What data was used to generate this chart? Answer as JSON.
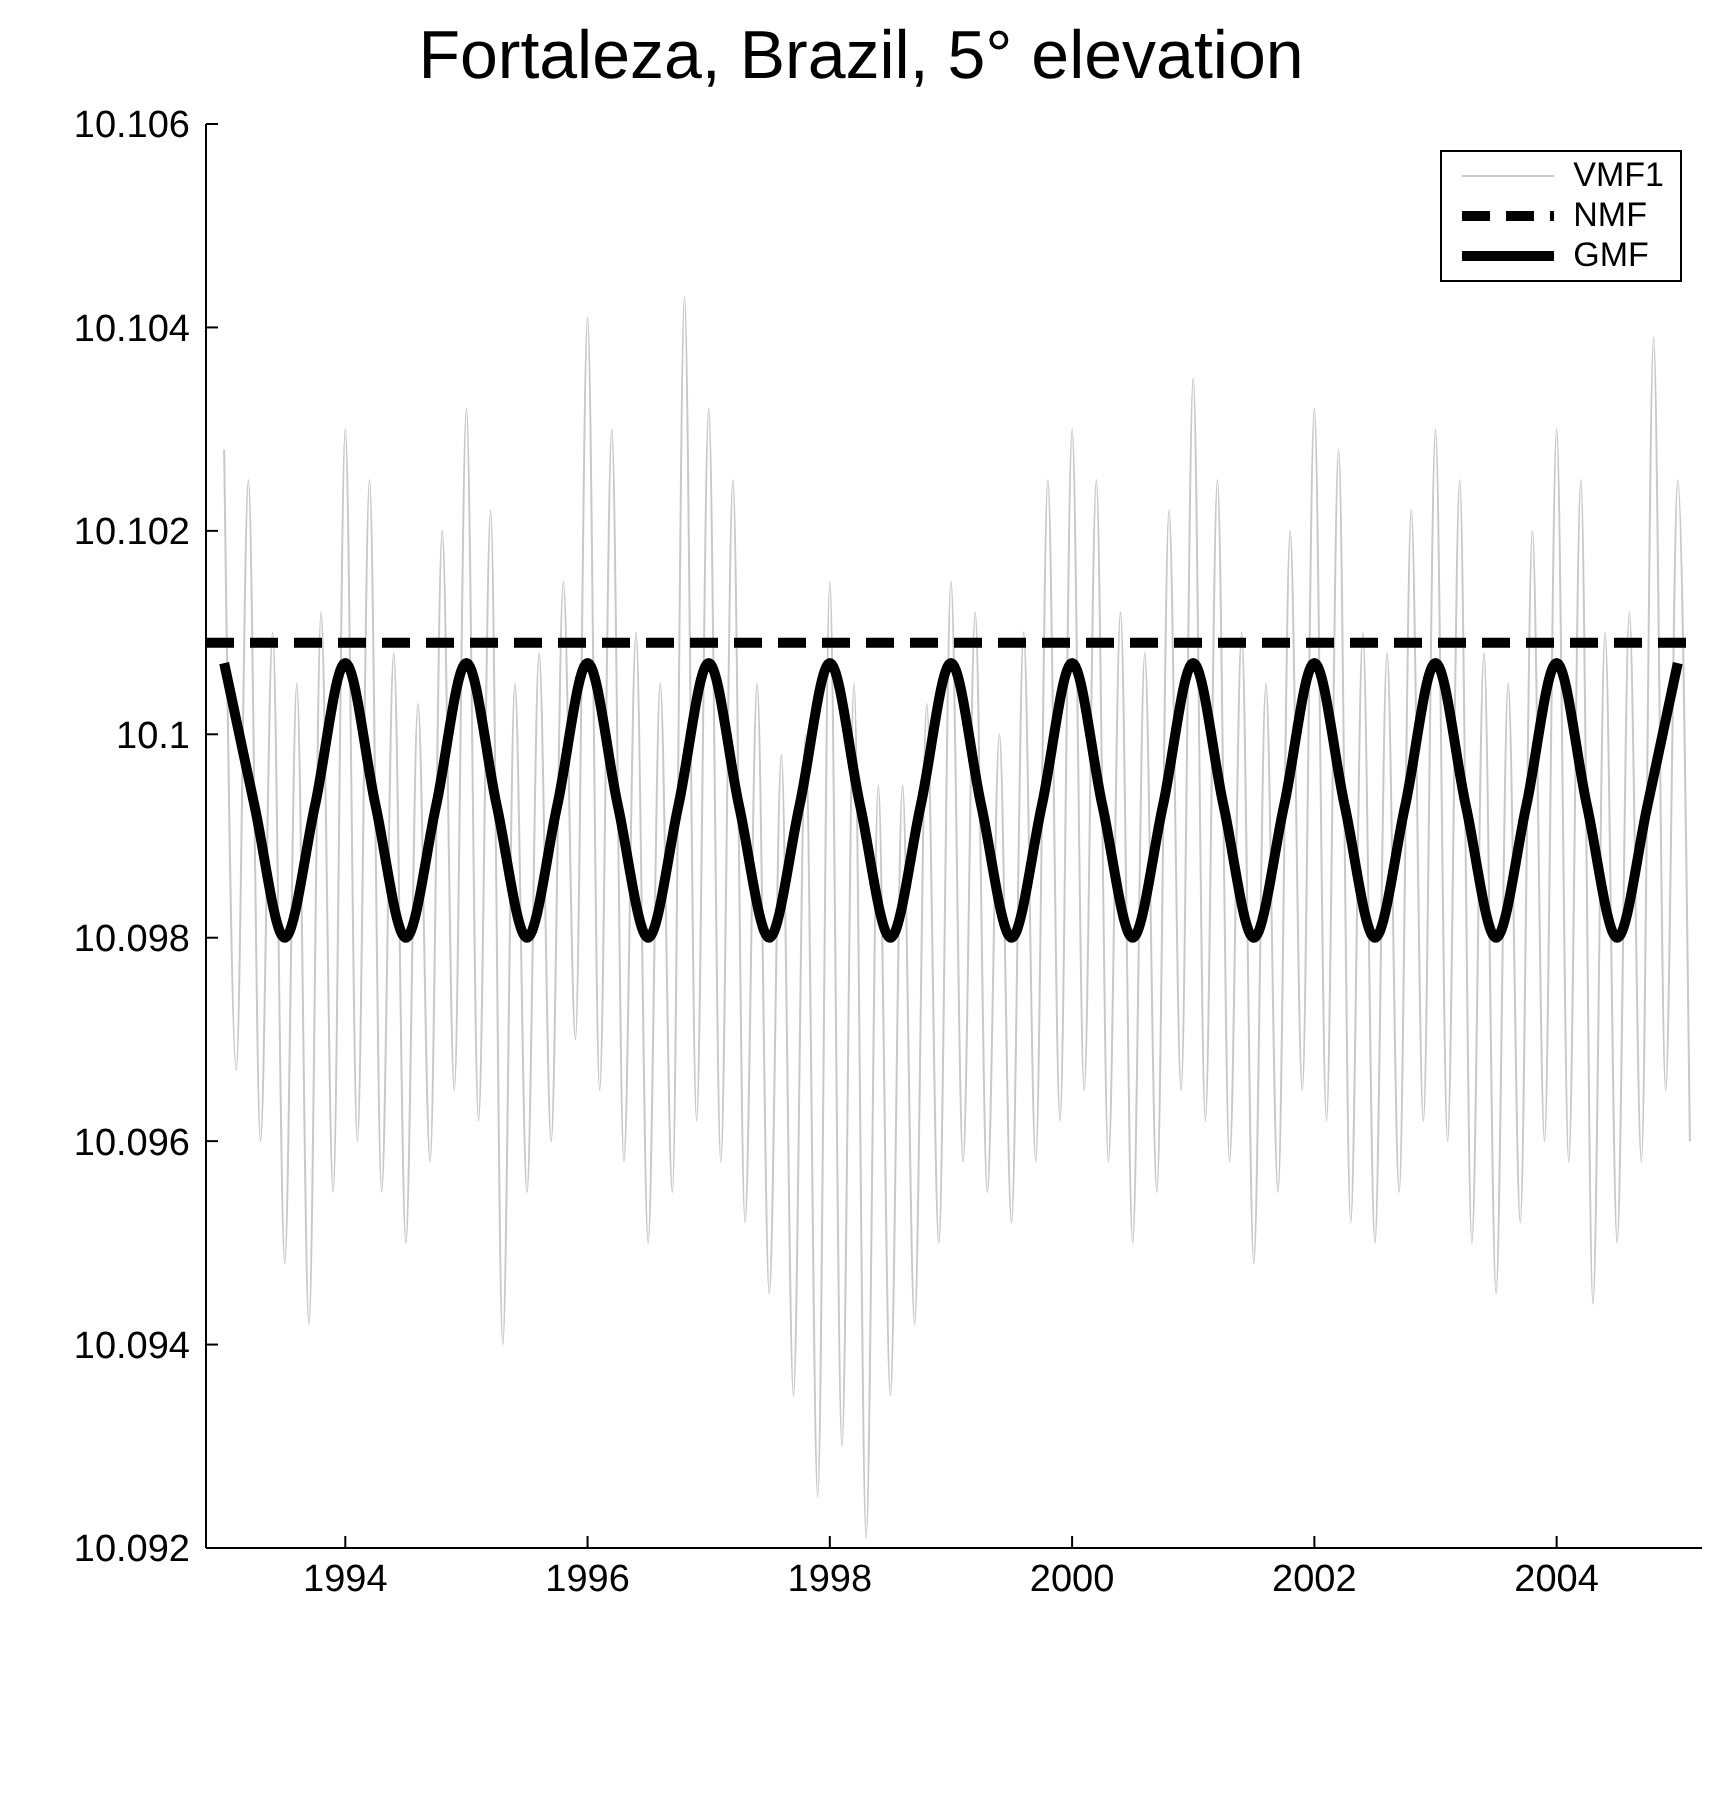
{
  "chart_data": {
    "type": "line",
    "title": "Fortaleza, Brazil, 5° elevation",
    "xlim": [
      1992.85,
      2005.2
    ],
    "xticks": [
      1994,
      1996,
      1998,
      2000,
      2002,
      2004
    ],
    "ylim": [
      10.092,
      10.106
    ],
    "yticks": [
      10.092,
      10.094,
      10.096,
      10.098,
      10.1,
      10.102,
      10.104,
      10.106
    ],
    "grid": false,
    "legend": "top right",
    "marker": "none",
    "series": [
      {
        "name": "VMF1",
        "color": "#c8c8c8",
        "line_style": "solid",
        "x": [
          1993.0,
          1993.1,
          1993.2,
          1993.3,
          1993.4,
          1993.5,
          1993.6,
          1993.7,
          1993.8,
          1993.9,
          1994.0,
          1994.1,
          1994.2,
          1994.3,
          1994.4,
          1994.5,
          1994.6,
          1994.7,
          1994.8,
          1994.9,
          1995.0,
          1995.1,
          1995.2,
          1995.3,
          1995.4,
          1995.5,
          1995.6,
          1995.7,
          1995.8,
          1995.9,
          1996.0,
          1996.1,
          1996.2,
          1996.3,
          1996.4,
          1996.5,
          1996.6,
          1996.7,
          1996.8,
          1996.9,
          1997.0,
          1997.1,
          1997.2,
          1997.3,
          1997.4,
          1997.5,
          1997.6,
          1997.7,
          1997.8,
          1997.9,
          1998.0,
          1998.1,
          1998.2,
          1998.3,
          1998.4,
          1998.5,
          1998.6,
          1998.7,
          1998.8,
          1998.9,
          1999.0,
          1999.1,
          1999.2,
          1999.3,
          1999.4,
          1999.5,
          1999.6,
          1999.7,
          1999.8,
          1999.9,
          2000.0,
          2000.1,
          2000.2,
          2000.3,
          2000.4,
          2000.5,
          2000.6,
          2000.7,
          2000.8,
          2000.9,
          2001.0,
          2001.1,
          2001.2,
          2001.3,
          2001.4,
          2001.5,
          2001.6,
          2001.7,
          2001.8,
          2001.9,
          2002.0,
          2002.1,
          2002.2,
          2002.3,
          2002.4,
          2002.5,
          2002.6,
          2002.7,
          2002.8,
          2002.9,
          2003.0,
          2003.1,
          2003.2,
          2003.3,
          2003.4,
          2003.5,
          2003.6,
          2003.7,
          2003.8,
          2003.9,
          2004.0,
          2004.1,
          2004.2,
          2004.3,
          2004.4,
          2004.5,
          2004.6,
          2004.7,
          2004.8,
          2004.9,
          2005.0,
          2005.1
        ],
        "values": [
          10.1028,
          10.0967,
          10.1025,
          10.096,
          10.101,
          10.0948,
          10.1005,
          10.0942,
          10.1012,
          10.0955,
          10.103,
          10.096,
          10.1025,
          10.0955,
          10.1008,
          10.095,
          10.1003,
          10.0958,
          10.102,
          10.0965,
          10.1032,
          10.0962,
          10.1022,
          10.094,
          10.1005,
          10.0955,
          10.1008,
          10.096,
          10.1015,
          10.097,
          10.1041,
          10.0965,
          10.103,
          10.0958,
          10.101,
          10.095,
          10.1005,
          10.0955,
          10.1043,
          10.0962,
          10.1032,
          10.0958,
          10.1025,
          10.0952,
          10.1005,
          10.0945,
          10.0998,
          10.0935,
          10.1,
          10.0925,
          10.1015,
          10.093,
          10.1005,
          10.0921,
          10.0995,
          10.0935,
          10.0995,
          10.0942,
          10.1003,
          10.095,
          10.1015,
          10.0958,
          10.1012,
          10.0955,
          10.1,
          10.0952,
          10.101,
          10.0958,
          10.1025,
          10.0962,
          10.103,
          10.0965,
          10.1025,
          10.0958,
          10.1012,
          10.095,
          10.1008,
          10.0955,
          10.1022,
          10.0965,
          10.1035,
          10.0962,
          10.1025,
          10.0958,
          10.101,
          10.0948,
          10.1005,
          10.0955,
          10.102,
          10.0965,
          10.1032,
          10.0962,
          10.1028,
          10.0952,
          10.101,
          10.095,
          10.1008,
          10.0955,
          10.1022,
          10.0962,
          10.103,
          10.096,
          10.1025,
          10.095,
          10.1008,
          10.0945,
          10.1005,
          10.0952,
          10.102,
          10.096,
          10.103,
          10.0958,
          10.1025,
          10.0944,
          10.101,
          10.095,
          10.1012,
          10.0958,
          10.1039,
          10.0965,
          10.1025,
          10.096
        ]
      },
      {
        "name": "NMF",
        "color": "#000000",
        "line_style": "dashed",
        "x": [
          1992.85,
          2005.2
        ],
        "values": [
          10.1009,
          10.1009
        ]
      },
      {
        "name": "GMF",
        "color": "#000000",
        "line_style": "solid",
        "x": [
          1993.0,
          1993.25,
          1993.5,
          1993.75,
          1994.0,
          1994.25,
          1994.5,
          1994.75,
          1995.0,
          1995.25,
          1995.5,
          1995.75,
          1996.0,
          1996.25,
          1996.5,
          1996.75,
          1997.0,
          1997.25,
          1997.5,
          1997.75,
          1998.0,
          1998.25,
          1998.5,
          1998.75,
          1999.0,
          1999.25,
          1999.5,
          1999.75,
          2000.0,
          2000.25,
          2000.5,
          2000.75,
          2001.0,
          2001.25,
          2001.5,
          2001.75,
          2002.0,
          2002.25,
          2002.5,
          2002.75,
          2003.0,
          2003.25,
          2003.5,
          2003.75,
          2004.0,
          2004.25,
          2004.5,
          2004.75,
          2005.0
        ],
        "values": [
          10.1007,
          10.0993,
          10.098,
          10.0993,
          10.1007,
          10.0993,
          10.098,
          10.0993,
          10.1007,
          10.0993,
          10.098,
          10.0993,
          10.1007,
          10.0993,
          10.098,
          10.0993,
          10.1007,
          10.0993,
          10.098,
          10.0993,
          10.1007,
          10.0993,
          10.098,
          10.0993,
          10.1007,
          10.0993,
          10.098,
          10.0993,
          10.1007,
          10.0993,
          10.098,
          10.0993,
          10.1007,
          10.0993,
          10.098,
          10.0993,
          10.1007,
          10.0993,
          10.098,
          10.0993,
          10.1007,
          10.0993,
          10.098,
          10.0993,
          10.1007,
          10.0993,
          10.098,
          10.0993,
          10.1007
        ]
      }
    ]
  }
}
